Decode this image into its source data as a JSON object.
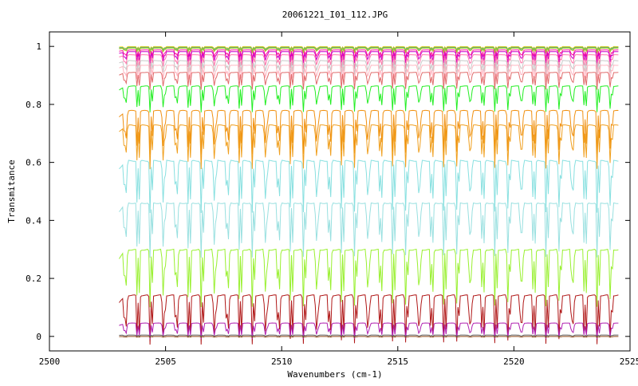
{
  "chart_data": {
    "type": "line",
    "title": "20061221_I01_112.JPG",
    "xlabel": "Wavenumbers (cm-1)",
    "ylabel": "Transmitance",
    "xlim": [
      2500,
      2525
    ],
    "ylim": [
      -0.05,
      1.05
    ],
    "x_ticks": [
      2500,
      2505,
      2510,
      2515,
      2520,
      2525
    ],
    "y_ticks": [
      0,
      0.2,
      0.4,
      0.6,
      0.8,
      1
    ],
    "x_tick_labels": [
      "2500",
      "2505",
      "2510",
      "2515",
      "2520",
      "2525"
    ],
    "y_tick_labels": [
      "0",
      "0.2",
      "0.4",
      "0.6",
      "0.8",
      "1"
    ],
    "grid": false,
    "legend": "none",
    "line_period_cm1": 0.55,
    "x_range": [
      2503.0,
      2524.5
    ],
    "series": [
      {
        "color": "#ffd700",
        "baseline": 1.0,
        "depth": 0.01
      },
      {
        "color": "#20b2aa",
        "baseline": 0.998,
        "depth": 0.012
      },
      {
        "color": "#ff8c00",
        "baseline": 0.996,
        "depth": 0.015
      },
      {
        "color": "#9acd32",
        "baseline": 0.995,
        "depth": 0.015
      },
      {
        "color": "#ff1493",
        "baseline": 0.99,
        "depth": 0.03
      },
      {
        "color": "#cc00cc",
        "baseline": 0.985,
        "depth": 0.04
      },
      {
        "color": "#ff77aa",
        "baseline": 0.975,
        "depth": 0.05
      },
      {
        "color": "#c8c8c8",
        "baseline": 0.955,
        "depth": 0.05
      },
      {
        "color": "#ffb6c1",
        "baseline": 0.94,
        "depth": 0.06
      },
      {
        "color": "#e06b6b",
        "baseline": 0.915,
        "depth": 0.06
      },
      {
        "color": "#22ee22",
        "baseline": 0.87,
        "depth": 0.09
      },
      {
        "color": "#f09010",
        "baseline": 0.79,
        "depth": 0.15
      },
      {
        "color": "#f0a020",
        "baseline": 0.74,
        "depth": 0.15
      },
      {
        "color": "#88e0e0",
        "baseline": 0.62,
        "depth": 0.18
      },
      {
        "color": "#99e0e0",
        "baseline": 0.475,
        "depth": 0.19
      },
      {
        "color": "#99f030",
        "baseline": 0.315,
        "depth": 0.2
      },
      {
        "color": "#b01818",
        "baseline": 0.155,
        "depth": 0.17
      },
      {
        "color": "#b020b0",
        "baseline": 0.05,
        "depth": 0.055
      },
      {
        "color": "#606060",
        "baseline": 0.005,
        "depth": 0.005
      },
      {
        "color": "#8b4513",
        "baseline": 0.0,
        "depth": 0.003
      }
    ]
  }
}
